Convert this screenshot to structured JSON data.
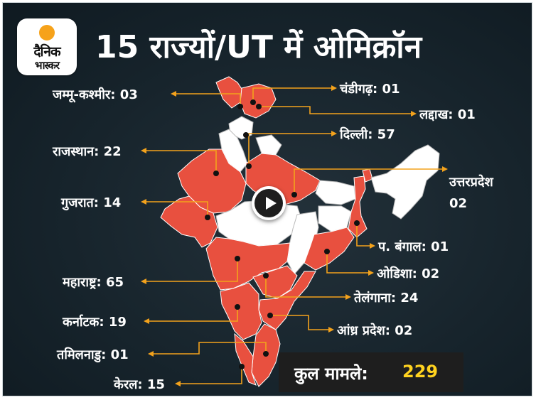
{
  "logo": {
    "line1": "दैनिक",
    "line2": "भास्कर",
    "sun_color": "#f6a21a"
  },
  "title": "15 राज्यों/UT में ओमिक्रॉन",
  "colors": {
    "affected": "#e8503f",
    "unaffected": "#ffffff",
    "leader": "#f3a21c",
    "background": "#17242c",
    "total_value": "#ffd21f"
  },
  "labels": {
    "jk": "जम्मू-कश्मीर: 03",
    "chandigarh": "चंडीगढ़: 01",
    "ladakh": "लद्दाख: 01",
    "delhi": "दिल्ली: 57",
    "rajasthan": "राजस्थान: 22",
    "up_name": "उत्तरप्रदेश",
    "up_count": "02",
    "gujarat": "गुजरात: 14",
    "wb": "प. बंगाल: 01",
    "odisha": "ओडिशा: 02",
    "maharashtra": "महाराष्ट्र: 65",
    "telangana": "तेलंगाना: 24",
    "karnataka": "कर्नाटक: 19",
    "ap": "आंध्र प्रदेश: 02",
    "tn": "तमिलनाडु: 01",
    "kerala": "केरल: 15"
  },
  "total": {
    "label": "कुल मामले:",
    "value": "229"
  },
  "video": {
    "icon": "play-icon"
  }
}
